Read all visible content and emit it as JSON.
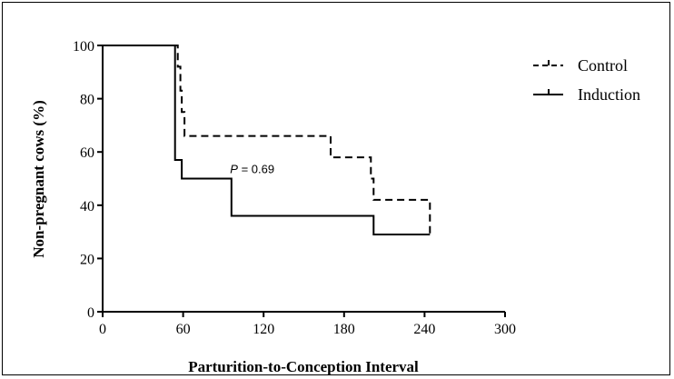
{
  "chart_data": {
    "type": "line",
    "step": true,
    "xlabel": "Parturition-to-Conception Interval",
    "ylabel": "Non-pregnant cows (%)",
    "xlim": [
      0,
      300
    ],
    "ylim": [
      0,
      100
    ],
    "xticks": [
      0,
      60,
      120,
      180,
      240,
      300
    ],
    "yticks": [
      0,
      20,
      40,
      60,
      80,
      100
    ],
    "xtick_labels": [
      "0",
      "60",
      "120",
      "180",
      "240",
      "300"
    ],
    "ytick_labels": [
      "0",
      "20",
      "40",
      "60",
      "80",
      "100"
    ],
    "grid": false,
    "legend_position": "top-right",
    "annotation": {
      "label": "P",
      "text": " = 0.69",
      "x": 95,
      "y": 52
    },
    "series": [
      {
        "name": "Control",
        "style": "dashed",
        "color": "#000000",
        "points": [
          [
            0,
            100
          ],
          [
            56,
            100
          ],
          [
            56,
            92
          ],
          [
            58,
            92
          ],
          [
            58,
            83
          ],
          [
            59,
            83
          ],
          [
            59,
            75
          ],
          [
            61,
            75
          ],
          [
            61,
            66
          ],
          [
            170,
            66
          ],
          [
            170,
            58
          ],
          [
            200,
            58
          ],
          [
            200,
            50
          ],
          [
            202,
            50
          ],
          [
            202,
            42
          ],
          [
            244,
            42
          ],
          [
            244,
            28
          ]
        ]
      },
      {
        "name": "Induction",
        "style": "solid",
        "color": "#000000",
        "points": [
          [
            0,
            100
          ],
          [
            54,
            100
          ],
          [
            54,
            57
          ],
          [
            59,
            57
          ],
          [
            59,
            50
          ],
          [
            96,
            50
          ],
          [
            96,
            36
          ],
          [
            202,
            36
          ],
          [
            202,
            29
          ],
          [
            244,
            29
          ]
        ]
      }
    ]
  }
}
